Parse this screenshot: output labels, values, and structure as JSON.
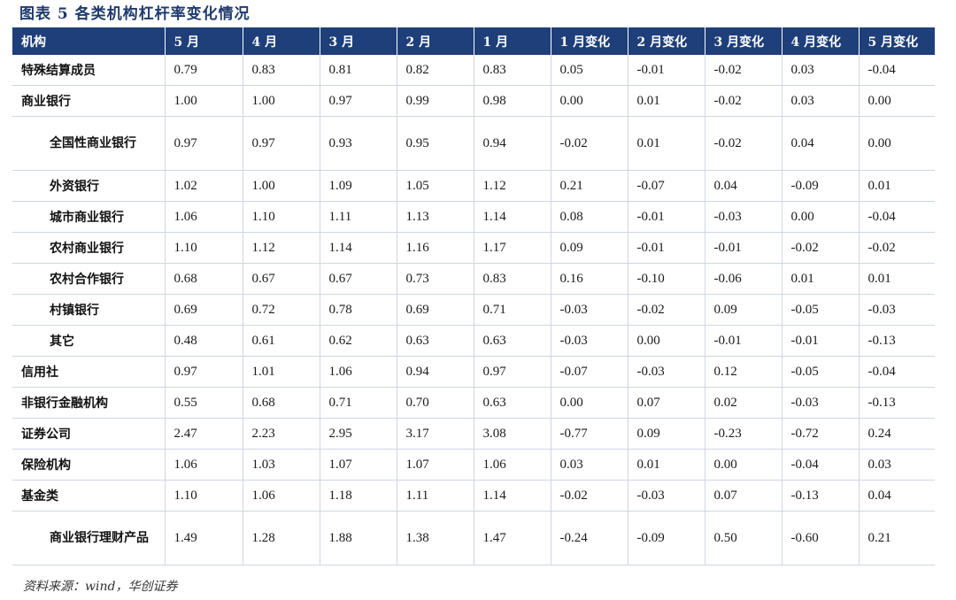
{
  "title": "图表 5   各类机构杠杆率变化情况",
  "headers": [
    "机构",
    "5 月",
    "4 月",
    "3 月",
    "2 月",
    "1 月",
    "1 月变化",
    "2 月变化",
    "3 月变化",
    "4 月变化",
    "5 月变化"
  ],
  "rows": [
    {
      "name": "特殊结算成员",
      "values": [
        "0.79",
        "0.83",
        "0.81",
        "0.82",
        "0.83",
        "0.05",
        "-0.01",
        "-0.02",
        "0.03",
        "-0.04"
      ]
    },
    {
      "name": "商业银行",
      "values": [
        "1.00",
        "1.00",
        "0.97",
        "0.99",
        "0.98",
        "0.00",
        "0.01",
        "-0.02",
        "0.03",
        "0.00"
      ]
    },
    {
      "name": "全国性商业银行",
      "values": [
        "0.97",
        "0.97",
        "0.93",
        "0.95",
        "0.94",
        "-0.02",
        "0.01",
        "-0.02",
        "0.04",
        "0.00"
      ]
    },
    {
      "name": "外资银行",
      "values": [
        "1.02",
        "1.00",
        "1.09",
        "1.05",
        "1.12",
        "0.21",
        "-0.07",
        "0.04",
        "-0.09",
        "0.01"
      ]
    },
    {
      "name": "城市商业银行",
      "values": [
        "1.06",
        "1.10",
        "1.11",
        "1.13",
        "1.14",
        "0.08",
        "-0.01",
        "-0.03",
        "0.00",
        "-0.04"
      ]
    },
    {
      "name": "农村商业银行",
      "values": [
        "1.10",
        "1.12",
        "1.14",
        "1.16",
        "1.17",
        "0.09",
        "-0.01",
        "-0.01",
        "-0.02",
        "-0.02"
      ]
    },
    {
      "name": "农村合作银行",
      "values": [
        "0.68",
        "0.67",
        "0.67",
        "0.73",
        "0.83",
        "0.16",
        "-0.10",
        "-0.06",
        "0.01",
        "0.01"
      ]
    },
    {
      "name": "村镇银行",
      "values": [
        "0.69",
        "0.72",
        "0.78",
        "0.69",
        "0.71",
        "-0.03",
        "-0.02",
        "0.09",
        "-0.05",
        "-0.03"
      ]
    },
    {
      "name": "其它",
      "values": [
        "0.48",
        "0.61",
        "0.62",
        "0.63",
        "0.63",
        "-0.03",
        "0.00",
        "-0.01",
        "-0.01",
        "-0.13"
      ]
    },
    {
      "name": "信用社",
      "values": [
        "0.97",
        "1.01",
        "1.06",
        "0.94",
        "0.97",
        "-0.07",
        "-0.03",
        "0.12",
        "-0.05",
        "-0.04"
      ]
    },
    {
      "name": "非银行金融机构",
      "values": [
        "0.55",
        "0.68",
        "0.71",
        "0.70",
        "0.63",
        "0.00",
        "0.07",
        "0.02",
        "-0.03",
        "-0.13"
      ]
    },
    {
      "name": "证券公司",
      "values": [
        "2.47",
        "2.23",
        "2.95",
        "3.17",
        "3.08",
        "-0.77",
        "0.09",
        "-0.23",
        "-0.72",
        "0.24"
      ]
    },
    {
      "name": "保险机构",
      "values": [
        "1.06",
        "1.03",
        "1.07",
        "1.07",
        "1.06",
        "0.03",
        "0.01",
        "0.00",
        "-0.04",
        "0.03"
      ]
    },
    {
      "name": "基金类",
      "values": [
        "1.10",
        "1.06",
        "1.18",
        "1.11",
        "1.14",
        "-0.02",
        "-0.03",
        "0.07",
        "-0.13",
        "0.04"
      ]
    },
    {
      "name": "商业银行理财产品",
      "values": [
        "1.49",
        "1.28",
        "1.88",
        "1.38",
        "1.47",
        "-0.24",
        "-0.09",
        "0.50",
        "-0.60",
        "0.21"
      ]
    }
  ],
  "source": "资料来源：wind，华创证券"
}
